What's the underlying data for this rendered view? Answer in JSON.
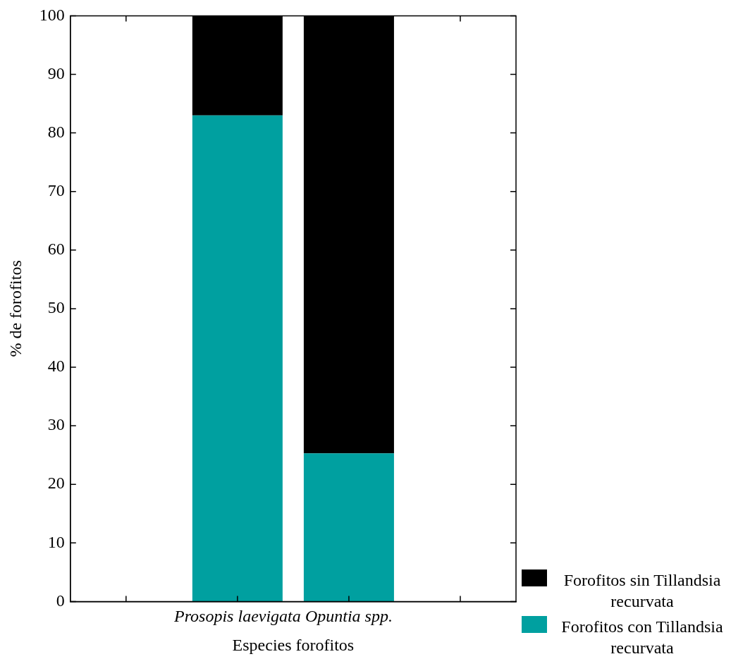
{
  "chart_data": {
    "type": "bar",
    "stacked": true,
    "xlabel": "Especies forofitos",
    "ylabel": "% de forofitos",
    "categories": [
      null,
      "Prosopis laevigata",
      "Opuntia spp.",
      null
    ],
    "series": [
      {
        "name": "Forofitos con Tillandsia recurvata",
        "color": "#00a0a0",
        "values": [
          null,
          83,
          25.3,
          null
        ]
      },
      {
        "name": "Forofitos sin Tillandsia recurvata",
        "color": "#000000",
        "values": [
          null,
          17,
          74.7,
          null
        ]
      }
    ],
    "ylim": [
      0,
      100
    ],
    "yticks": [
      0,
      10,
      20,
      30,
      40,
      50,
      60,
      70,
      80,
      90,
      100
    ],
    "legend": "bottom right"
  }
}
